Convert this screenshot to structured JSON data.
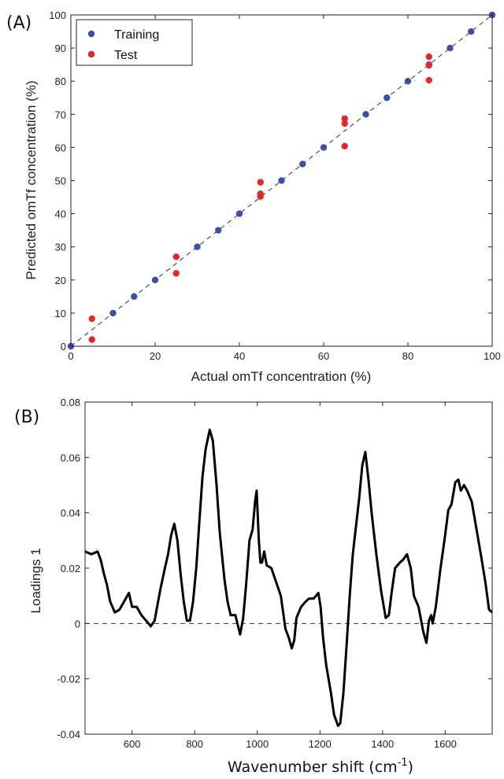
{
  "panel_a": {
    "label": "(A)",
    "chart_data": {
      "type": "scatter",
      "xlabel": "Actual omTf concentration (%)",
      "ylabel": "Predicted omTf concentration (%)",
      "xlim": [
        0,
        100
      ],
      "ylim": [
        0,
        100
      ],
      "xticks": [
        "0",
        "20",
        "40",
        "60",
        "80",
        "100"
      ],
      "yticks": [
        "0",
        "10",
        "20",
        "30",
        "40",
        "50",
        "60",
        "70",
        "80",
        "90",
        "100"
      ],
      "legend_position": "top-left",
      "reference_line": "dashed identity y = x",
      "series": [
        {
          "name": "Training",
          "color": "#3a4fa6",
          "points": [
            [
              0,
              0
            ],
            [
              10,
              10
            ],
            [
              15,
              15
            ],
            [
              20,
              20
            ],
            [
              30,
              30
            ],
            [
              35,
              35
            ],
            [
              40,
              40
            ],
            [
              50,
              50
            ],
            [
              55,
              55
            ],
            [
              60,
              60
            ],
            [
              70,
              70
            ],
            [
              75,
              75
            ],
            [
              80,
              80
            ],
            [
              85,
              85
            ],
            [
              90,
              90
            ],
            [
              95,
              95
            ],
            [
              100,
              100
            ]
          ]
        },
        {
          "name": "Test",
          "color": "#e3262b",
          "points": [
            [
              5,
              8.3
            ],
            [
              5,
              2
            ],
            [
              25,
              27
            ],
            [
              25,
              22
            ],
            [
              45,
              49.5
            ],
            [
              45,
              46
            ],
            [
              45,
              45.2
            ],
            [
              65,
              68.7
            ],
            [
              65,
              67.2
            ],
            [
              65,
              60.4
            ],
            [
              85,
              87.4
            ],
            [
              85,
              84.8
            ],
            [
              85,
              80.3
            ]
          ]
        }
      ]
    }
  },
  "panel_b": {
    "label": "(B)",
    "chart_data": {
      "type": "line",
      "xlabel": "Wavenumber shift (cm",
      "xlabel_superscript": "-1",
      "xlabel_close": ")",
      "ylabel": "Loadings 1",
      "xlim": [
        450,
        1750
      ],
      "ylim": [
        -0.04,
        0.08
      ],
      "xticks": [
        "600",
        "800",
        "1000",
        "1200",
        "1400",
        "1600"
      ],
      "yticks": [
        "-0.04",
        "-0.02",
        "0",
        "0.02",
        "0.04",
        "0.06",
        "0.08"
      ],
      "zero_line": "dashed",
      "series": [
        {
          "color": "#000000",
          "points": [
            [
              450,
              0.026
            ],
            [
              470,
              0.025
            ],
            [
              490,
              0.026
            ],
            [
              500,
              0.023
            ],
            [
              510,
              0.018
            ],
            [
              520,
              0.014
            ],
            [
              530,
              0.008
            ],
            [
              545,
              0.004
            ],
            [
              560,
              0.005
            ],
            [
              575,
              0.008
            ],
            [
              590,
              0.011
            ],
            [
              600,
              0.006
            ],
            [
              615,
              0.006
            ],
            [
              630,
              0.003
            ],
            [
              645,
              0.001
            ],
            [
              660,
              -0.001
            ],
            [
              672,
              0.001
            ],
            [
              690,
              0.012
            ],
            [
              705,
              0.02
            ],
            [
              715,
              0.025
            ],
            [
              725,
              0.032
            ],
            [
              735,
              0.036
            ],
            [
              745,
              0.03
            ],
            [
              755,
              0.018
            ],
            [
              765,
              0.008
            ],
            [
              775,
              0.001
            ],
            [
              785,
              0.001
            ],
            [
              795,
              0.008
            ],
            [
              805,
              0.02
            ],
            [
              815,
              0.037
            ],
            [
              825,
              0.053
            ],
            [
              835,
              0.063
            ],
            [
              848,
              0.07
            ],
            [
              858,
              0.066
            ],
            [
              870,
              0.05
            ],
            [
              880,
              0.033
            ],
            [
              895,
              0.016
            ],
            [
              905,
              0.008
            ],
            [
              915,
              0.003
            ],
            [
              930,
              0.003
            ],
            [
              945,
              -0.004
            ],
            [
              955,
              0.002
            ],
            [
              965,
              0.015
            ],
            [
              975,
              0.03
            ],
            [
              985,
              0.034
            ],
            [
              993,
              0.044
            ],
            [
              998,
              0.048
            ],
            [
              1005,
              0.03
            ],
            [
              1010,
              0.022
            ],
            [
              1015,
              0.022
            ],
            [
              1022,
              0.026
            ],
            [
              1030,
              0.021
            ],
            [
              1045,
              0.02
            ],
            [
              1060,
              0.015
            ],
            [
              1075,
              0.01
            ],
            [
              1090,
              -0.002
            ],
            [
              1100,
              -0.005
            ],
            [
              1110,
              -0.009
            ],
            [
              1118,
              -0.006
            ],
            [
              1125,
              0.002
            ],
            [
              1140,
              0.006
            ],
            [
              1155,
              0.008
            ],
            [
              1165,
              0.009
            ],
            [
              1180,
              0.009
            ],
            [
              1195,
              0.011
            ],
            [
              1202,
              0.006
            ],
            [
              1210,
              -0.005
            ],
            [
              1220,
              -0.015
            ],
            [
              1235,
              -0.025
            ],
            [
              1245,
              -0.033
            ],
            [
              1258,
              -0.037
            ],
            [
              1265,
              -0.036
            ],
            [
              1275,
              -0.025
            ],
            [
              1285,
              -0.008
            ],
            [
              1295,
              0.01
            ],
            [
              1305,
              0.025
            ],
            [
              1315,
              0.035
            ],
            [
              1325,
              0.045
            ],
            [
              1335,
              0.057
            ],
            [
              1345,
              0.062
            ],
            [
              1355,
              0.052
            ],
            [
              1365,
              0.04
            ],
            [
              1380,
              0.025
            ],
            [
              1395,
              0.012
            ],
            [
              1410,
              0.002
            ],
            [
              1420,
              0.003
            ],
            [
              1430,
              0.012
            ],
            [
              1440,
              0.02
            ],
            [
              1455,
              0.022
            ],
            [
              1465,
              0.023
            ],
            [
              1478,
              0.025
            ],
            [
              1490,
              0.02
            ],
            [
              1500,
              0.01
            ],
            [
              1515,
              0.006
            ],
            [
              1530,
              -0.003
            ],
            [
              1540,
              -0.007
            ],
            [
              1548,
              0.001
            ],
            [
              1555,
              0.003
            ],
            [
              1560,
              0.0
            ],
            [
              1570,
              0.006
            ],
            [
              1585,
              0.02
            ],
            [
              1600,
              0.032
            ],
            [
              1610,
              0.041
            ],
            [
              1620,
              0.043
            ],
            [
              1632,
              0.051
            ],
            [
              1642,
              0.052
            ],
            [
              1650,
              0.048
            ],
            [
              1660,
              0.05
            ],
            [
              1670,
              0.048
            ],
            [
              1685,
              0.044
            ],
            [
              1700,
              0.034
            ],
            [
              1715,
              0.024
            ],
            [
              1728,
              0.015
            ],
            [
              1740,
              0.005
            ],
            [
              1750,
              0.004
            ]
          ]
        }
      ]
    }
  }
}
